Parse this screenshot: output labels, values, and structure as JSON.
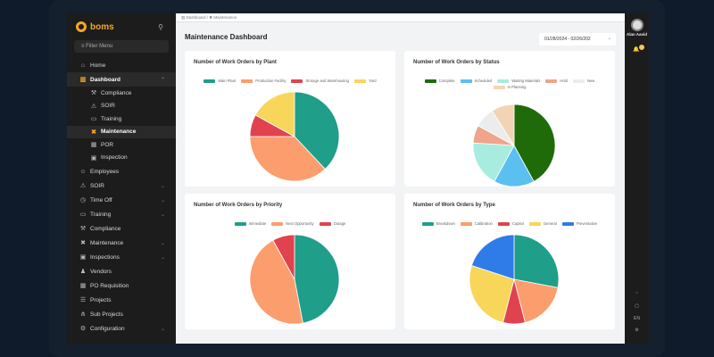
{
  "brand": "boms",
  "sidebar": {
    "filter_placeholder": "Filter Menu",
    "items": [
      {
        "label": "Home",
        "icon": "home-icon",
        "glyph": "⌂"
      },
      {
        "label": "Dashboard",
        "icon": "chart-icon",
        "glyph": "▥",
        "open": true,
        "chevron": "⌃"
      },
      {
        "label": "Compliance",
        "icon": "gavel-icon",
        "glyph": "⚒",
        "sub": true
      },
      {
        "label": "SOIR",
        "icon": "warning-icon",
        "glyph": "⚠",
        "sub": true
      },
      {
        "label": "Training",
        "icon": "presentation-icon",
        "glyph": "▭",
        "sub": true
      },
      {
        "label": "Maintenance",
        "icon": "tools-icon",
        "glyph": "✖",
        "sub": true,
        "active": true
      },
      {
        "label": "POR",
        "icon": "cart-icon",
        "glyph": "▦",
        "sub": true
      },
      {
        "label": "Inspection",
        "icon": "clipboard-icon",
        "glyph": "▣",
        "sub": true
      },
      {
        "label": "Employees",
        "icon": "users-icon",
        "glyph": "☺"
      },
      {
        "label": "SOIR",
        "icon": "warning-icon",
        "glyph": "⚠",
        "chevron": "⌄"
      },
      {
        "label": "Time Off",
        "icon": "clock-icon",
        "glyph": "◷",
        "chevron": "⌄"
      },
      {
        "label": "Training",
        "icon": "presentation-icon",
        "glyph": "▭",
        "chevron": "⌄"
      },
      {
        "label": "Compliance",
        "icon": "gavel-icon",
        "glyph": "⚒"
      },
      {
        "label": "Maintenance",
        "icon": "tools-icon",
        "glyph": "✖",
        "chevron": "⌄"
      },
      {
        "label": "Inspections",
        "icon": "clipboard-icon",
        "glyph": "▣",
        "chevron": "⌄"
      },
      {
        "label": "Vendors",
        "icon": "vendor-icon",
        "glyph": "♟"
      },
      {
        "label": "PO Requisition",
        "icon": "cart-icon",
        "glyph": "▦"
      },
      {
        "label": "Projects",
        "icon": "list-icon",
        "glyph": "☰"
      },
      {
        "label": "Sub Projects",
        "icon": "hierarchy-icon",
        "glyph": "⋔"
      },
      {
        "label": "Configuration",
        "icon": "gear-icon",
        "glyph": "⚙",
        "chevron": "⌄"
      }
    ]
  },
  "breadcrumb": [
    "Dashboard",
    "Maintenance"
  ],
  "page_title": "Maintenance Dashboard",
  "date_range": "01/28/2024 - 02/26/202",
  "user": {
    "name": "Alan Aavid"
  },
  "right_bar": {
    "lang": "EN"
  },
  "chart_data": [
    {
      "type": "pie",
      "title": "Number of Work Orders by Plant",
      "labels": [
        "Main Plant",
        "Production Facility",
        "Storage and Warehousing",
        "Yard"
      ],
      "values": [
        38,
        37,
        8,
        17
      ],
      "colors": [
        "#1f9e89",
        "#fc9d6e",
        "#e0434f",
        "#f7d65a"
      ]
    },
    {
      "type": "pie",
      "title": "Number of Work Orders by Status",
      "labels": [
        "Complete",
        "Scheduled",
        "Waiting Materials",
        "Hold",
        "New",
        "In Planning"
      ],
      "values": [
        42,
        16,
        18,
        7,
        8,
        9
      ],
      "colors": [
        "#1f6b0a",
        "#5bbff0",
        "#a8ecdf",
        "#f0a48c",
        "#ececec",
        "#f2d4b4"
      ]
    },
    {
      "type": "pie",
      "title": "Number of Work Orders by Priority",
      "labels": [
        "Immediate",
        "Next Opportunity",
        "Outage"
      ],
      "values": [
        47,
        45,
        8
      ],
      "colors": [
        "#1f9e89",
        "#fc9d6e",
        "#e0434f"
      ]
    },
    {
      "type": "pie",
      "title": "Number of Work Orders by Type",
      "labels": [
        "Breakdown",
        "Calibration",
        "Capitol",
        "General",
        "Preventative"
      ],
      "values": [
        28,
        18,
        8,
        26,
        20
      ],
      "colors": [
        "#1f9e89",
        "#fc9d6e",
        "#e0434f",
        "#f7d65a",
        "#2f7be8"
      ]
    }
  ]
}
